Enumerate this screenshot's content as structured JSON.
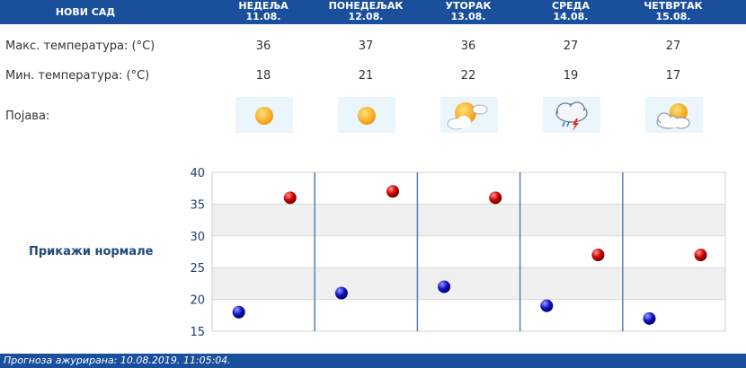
{
  "header": {
    "city": "НОВИ САД",
    "days": [
      {
        "name": "НЕДЕЉА",
        "date": "11.08."
      },
      {
        "name": "ПОНЕДЕЉАК",
        "date": "12.08."
      },
      {
        "name": "УТОРАК",
        "date": "13.08."
      },
      {
        "name": "СРЕДА",
        "date": "14.08."
      },
      {
        "name": "ЧЕТВРТАК",
        "date": "15.08."
      }
    ]
  },
  "rows": {
    "max_label": "Макс. температура: (°C)",
    "min_label": "Мин. температура: (°C)",
    "phenomenon_label": "Појава:",
    "max_values": [
      "36",
      "37",
      "36",
      "27",
      "27"
    ],
    "min_values": [
      "18",
      "21",
      "22",
      "19",
      "17"
    ],
    "icons": [
      "sun-icon",
      "sun-icon",
      "sun-cloud-icon",
      "storm-cloud-icon",
      "sun-cloud-icon"
    ]
  },
  "normals_link": "Прикажи нормале",
  "footer": {
    "updated": "Прогноза ажурирана:  10.08.2019.  11:05:04."
  },
  "colors": {
    "header_bg": "#1a4f9c",
    "max_dot": "#c00000",
    "min_dot": "#1010b0",
    "grid_band": "#f0f0f0",
    "day_line": "#5a7fb0"
  },
  "chart_data": {
    "type": "scatter",
    "categories": [
      "11.08.",
      "12.08.",
      "13.08.",
      "14.08.",
      "15.08."
    ],
    "series": [
      {
        "values": [
          36,
          37,
          36,
          27,
          27
        ]
      },
      {
        "values": [
          18,
          21,
          22,
          19,
          17
        ]
      }
    ],
    "yticks": [
      "40",
      "35",
      "30",
      "25",
      "20",
      "15"
    ],
    "ylim": [
      15,
      40
    ]
  }
}
